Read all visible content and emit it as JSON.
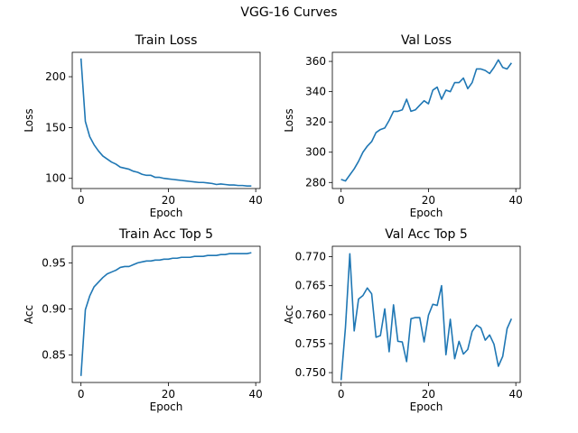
{
  "figure": {
    "suptitle": "VGG-16 Curves"
  },
  "chart_data": [
    {
      "type": "line",
      "title": "Train Loss",
      "xlabel": "Epoch",
      "ylabel": "Loss",
      "xlim": [
        -2,
        41
      ],
      "ylim": [
        90,
        224
      ],
      "xticks": [
        0,
        20,
        40
      ],
      "yticks": [
        100,
        150,
        200
      ],
      "grid": false,
      "color": "#1f77b4",
      "series": [
        {
          "x": [
            0,
            1,
            2,
            3,
            4,
            5,
            6,
            7,
            8,
            9,
            10,
            11,
            12,
            13,
            14,
            15,
            16,
            17,
            18,
            19,
            20,
            21,
            22,
            23,
            24,
            25,
            26,
            27,
            28,
            29,
            30,
            31,
            32,
            33,
            34,
            35,
            36,
            37,
            38,
            39
          ],
          "values": [
            218,
            156,
            141,
            133,
            127,
            122,
            119,
            116,
            114,
            111,
            110,
            109,
            107,
            106,
            104,
            103,
            103,
            101,
            101,
            100,
            99.5,
            99,
            98.5,
            98,
            97.5,
            97,
            96.5,
            96,
            96,
            95.5,
            95,
            94,
            94.5,
            94,
            93.5,
            93.5,
            93,
            93,
            92.5,
            92.5
          ]
        }
      ]
    },
    {
      "type": "line",
      "title": "Val Loss",
      "xlabel": "Epoch",
      "ylabel": "Loss",
      "xlim": [
        -2,
        41
      ],
      "ylim": [
        276,
        366
      ],
      "xticks": [
        0,
        20,
        40
      ],
      "yticks": [
        280,
        300,
        320,
        340,
        360
      ],
      "grid": false,
      "color": "#1f77b4",
      "series": [
        {
          "x": [
            0,
            1,
            2,
            3,
            4,
            5,
            6,
            7,
            8,
            9,
            10,
            11,
            12,
            13,
            14,
            15,
            16,
            17,
            18,
            19,
            20,
            21,
            22,
            23,
            24,
            25,
            26,
            27,
            28,
            29,
            30,
            31,
            32,
            33,
            34,
            35,
            36,
            37,
            38,
            39
          ],
          "values": [
            282,
            281,
            285,
            289,
            294,
            300,
            304,
            307,
            313,
            315,
            316,
            321,
            327,
            327,
            328,
            335,
            327,
            328,
            331,
            334,
            332,
            341,
            343,
            335,
            341,
            340,
            346,
            346,
            349,
            342,
            346,
            355,
            355,
            354,
            352,
            356,
            361,
            356,
            355,
            359
          ]
        }
      ]
    },
    {
      "type": "line",
      "title": "Train Acc Top 5",
      "xlabel": "Epoch",
      "ylabel": "Acc",
      "xlim": [
        -2,
        41
      ],
      "ylim": [
        0.82,
        0.968
      ],
      "xticks": [
        0,
        20,
        40
      ],
      "yticks": [
        0.85,
        0.9,
        0.95
      ],
      "grid": false,
      "color": "#1f77b4",
      "series": [
        {
          "x": [
            0,
            1,
            2,
            3,
            4,
            5,
            6,
            7,
            8,
            9,
            10,
            11,
            12,
            13,
            14,
            15,
            16,
            17,
            18,
            19,
            20,
            21,
            22,
            23,
            24,
            25,
            26,
            27,
            28,
            29,
            30,
            31,
            32,
            33,
            34,
            35,
            36,
            37,
            38,
            39
          ],
          "values": [
            0.827,
            0.899,
            0.914,
            0.924,
            0.929,
            0.934,
            0.938,
            0.94,
            0.942,
            0.945,
            0.946,
            0.946,
            0.948,
            0.95,
            0.951,
            0.952,
            0.952,
            0.953,
            0.953,
            0.954,
            0.954,
            0.955,
            0.955,
            0.956,
            0.956,
            0.956,
            0.957,
            0.957,
            0.957,
            0.958,
            0.958,
            0.958,
            0.959,
            0.959,
            0.96,
            0.96,
            0.96,
            0.96,
            0.96,
            0.961
          ]
        }
      ]
    },
    {
      "type": "line",
      "title": "Val Acc Top 5",
      "xlabel": "Epoch",
      "ylabel": "Acc",
      "xlim": [
        -2,
        41
      ],
      "ylim": [
        0.7483,
        0.7718
      ],
      "xticks": [
        0,
        20,
        40
      ],
      "yticks": [
        0.75,
        0.755,
        0.76,
        0.765,
        0.77
      ],
      "grid": false,
      "color": "#1f77b4",
      "series": [
        {
          "x": [
            0,
            1,
            2,
            3,
            4,
            5,
            6,
            7,
            8,
            9,
            10,
            11,
            12,
            13,
            14,
            15,
            16,
            17,
            18,
            19,
            20,
            21,
            22,
            23,
            24,
            25,
            26,
            27,
            28,
            29,
            30,
            31,
            32,
            33,
            34,
            35,
            36,
            37,
            38,
            39
          ],
          "values": [
            0.7487,
            0.7578,
            0.7705,
            0.7572,
            0.7627,
            0.7633,
            0.7646,
            0.7636,
            0.7561,
            0.7564,
            0.761,
            0.7536,
            0.7617,
            0.7554,
            0.7553,
            0.7519,
            0.7593,
            0.7595,
            0.7595,
            0.7553,
            0.7599,
            0.7618,
            0.7616,
            0.765,
            0.7531,
            0.7592,
            0.7524,
            0.7554,
            0.7532,
            0.754,
            0.7571,
            0.7582,
            0.7577,
            0.7556,
            0.7565,
            0.7549,
            0.7511,
            0.7528,
            0.7576,
            0.7593
          ]
        }
      ]
    }
  ]
}
